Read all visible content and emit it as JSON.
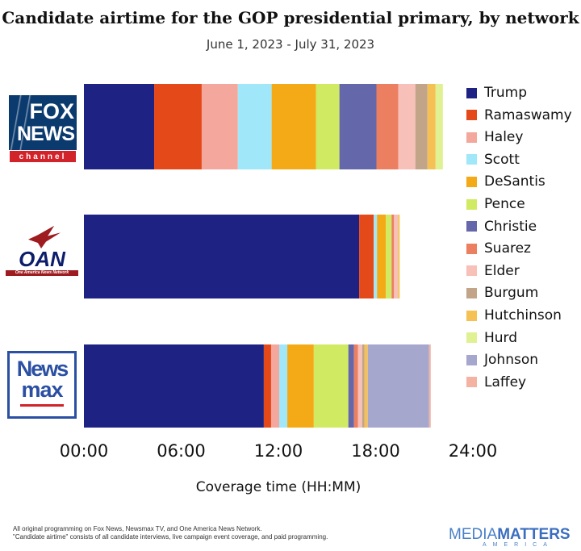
{
  "chart_data": {
    "type": "bar",
    "orientation": "horizontal",
    "stacked": true,
    "title": "Candidate airtime for the GOP presidential primary, by network",
    "subtitle": "June 1, 2023 - July 31, 2023",
    "xlabel": "Coverage time (HH:MM)",
    "xlim": [
      "00:00",
      "24:00"
    ],
    "xticks": [
      "00:00",
      "06:00",
      "12:00",
      "18:00",
      "24:00"
    ],
    "legend_position": "right",
    "categories": [
      "Fox News",
      "OAN",
      "Newsmax"
    ],
    "series": [
      {
        "name": "Trump",
        "color": "#1e2383",
        "values": [
          "4:20",
          "16:59",
          "11:06"
        ]
      },
      {
        "name": "Ramaswamy",
        "color": "#e4491a",
        "values": [
          "2:56",
          "0:54",
          "0:27"
        ]
      },
      {
        "name": "Haley",
        "color": "#f4a79d",
        "values": [
          "2:14",
          "0:00",
          "0:30"
        ]
      },
      {
        "name": "Scott",
        "color": "#a0e7fa",
        "values": [
          "2:05",
          "0:12",
          "0:30"
        ]
      },
      {
        "name": "DeSantis",
        "color": "#f4aa16",
        "values": [
          "2:44",
          "0:33",
          "1:38"
        ]
      },
      {
        "name": "Pence",
        "color": "#d0eb62",
        "values": [
          "1:27",
          "0:21",
          "2:08"
        ]
      },
      {
        "name": "Christie",
        "color": "#6467a9",
        "values": [
          "2:17",
          "0:00",
          "0:21"
        ]
      },
      {
        "name": "Suarez",
        "color": "#ed7f61",
        "values": [
          "1:21",
          "0:09",
          "0:15"
        ]
      },
      {
        "name": "Elder",
        "color": "#f7c0b8",
        "values": [
          "1:03",
          "0:15",
          "0:15"
        ]
      },
      {
        "name": "Burgum",
        "color": "#c2a588",
        "values": [
          "0:45",
          "0:00",
          "0:09"
        ]
      },
      {
        "name": "Hutchinson",
        "color": "#f5c154",
        "values": [
          "0:30",
          "0:06",
          "0:12"
        ]
      },
      {
        "name": "Hurd",
        "color": "#e0f193",
        "values": [
          "0:27",
          "0:00",
          "0:00"
        ]
      },
      {
        "name": "Johnson",
        "color": "#a5a7cd",
        "values": [
          "0:00",
          "0:00",
          "3:47"
        ]
      },
      {
        "name": "Laffey",
        "color": "#f4b3a2",
        "values": [
          "0:00",
          "0:00",
          "0:06"
        ]
      }
    ]
  },
  "logos": {
    "fox": {
      "line1": "FOX",
      "line2": "NEWS",
      "line3": "channel"
    },
    "oan": {
      "line1": "OAN",
      "line2": "One America News Network"
    },
    "newsmax": {
      "line1": "News",
      "line2": "max"
    }
  },
  "footer": {
    "note1": "All original programming on Fox News, Newsmax TV, and One America News Network.",
    "note2": "\"Candidate airtime\" consists of all candidate interviews, live campaign event coverage, and paid programming.",
    "brand1": "MEDIA",
    "brand2": "MATTERS",
    "brand3": "AMERICA"
  }
}
